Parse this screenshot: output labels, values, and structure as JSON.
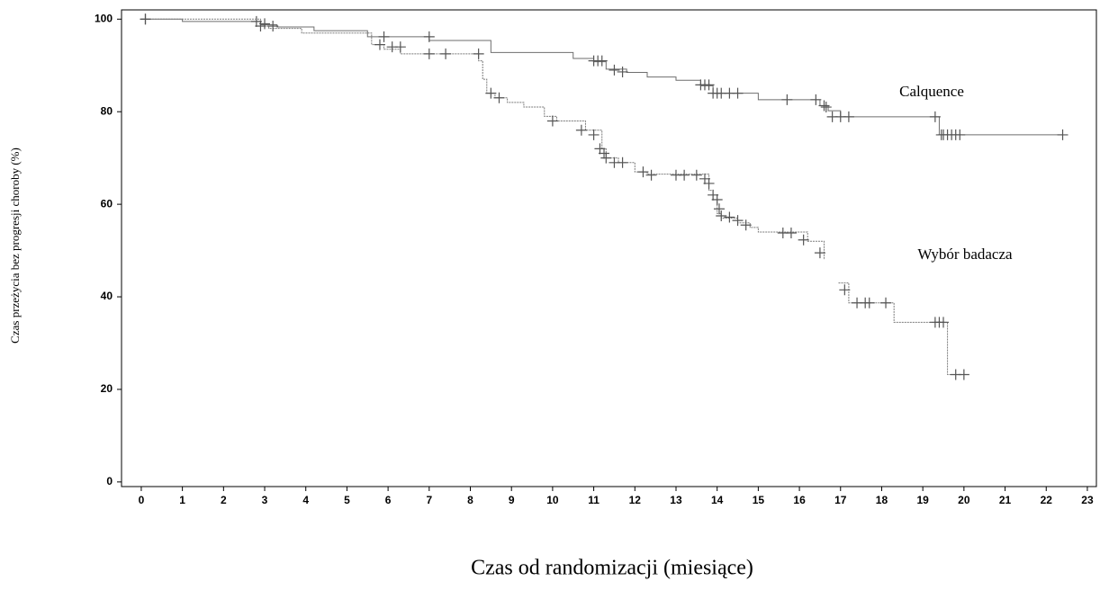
{
  "chart_data": {
    "type": "kaplan-meier",
    "y_label": "Czas przeżycia bez progresji choroby (%)",
    "x_label": "Czas od randomizacji (miesiące)",
    "xlim": [
      -0.48,
      23.22
    ],
    "ylim": [
      -1,
      102
    ],
    "xticks": [
      0,
      1,
      2,
      3,
      4,
      5,
      6,
      7,
      8,
      9,
      10,
      11,
      12,
      13,
      14,
      15,
      16,
      17,
      18,
      19,
      20,
      21,
      22,
      23
    ],
    "yticks": [
      0,
      20,
      40,
      60,
      80,
      100
    ],
    "series": [
      {
        "name": "Calquence",
        "color": "#6e6e6e",
        "dash": false,
        "x": [
          0,
          1.0,
          2.9,
          3.3,
          4.2,
          5.5,
          7.0,
          8.5,
          10.5,
          11.0,
          11.3,
          11.8,
          12.3,
          13.0,
          13.6,
          13.9,
          15.0,
          16.5,
          16.7,
          17.0,
          19.3,
          19.4,
          22.4
        ],
        "y": [
          100,
          99.5,
          98.8,
          98.3,
          97.5,
          96.2,
          95.4,
          92.8,
          91.5,
          90.8,
          89.2,
          88.5,
          87.5,
          86.8,
          85.6,
          84.0,
          82.6,
          81.3,
          80.2,
          78.9,
          78.9,
          75.0,
          75.0
        ],
        "censored_x": [
          0.1,
          2.8,
          3.0,
          5.9,
          7.0,
          11.0,
          11.1,
          11.2,
          11.5,
          11.7,
          13.6,
          13.7,
          13.8,
          13.9,
          14.0,
          14.1,
          14.3,
          14.5,
          15.7,
          16.4,
          16.6,
          16.65,
          16.8,
          17.0,
          17.2,
          19.3,
          19.45,
          19.5,
          19.6,
          19.7,
          19.8,
          19.9,
          22.4
        ],
        "censored_y": [
          100,
          99.5,
          99,
          96.2,
          96.2,
          91,
          91,
          91,
          89,
          88.6,
          85.8,
          85.8,
          85.8,
          84,
          84,
          84,
          84,
          84,
          82.6,
          82.6,
          81.3,
          81,
          78.9,
          78.9,
          78.9,
          78.9,
          75,
          75,
          75,
          75,
          75,
          75,
          75
        ]
      },
      {
        "name": "Wybór badacza",
        "color": "#7a7a7a",
        "dash": true,
        "x": [
          0,
          2.9,
          3.1,
          3.9,
          5.6,
          5.9,
          6.3,
          8.2,
          8.3,
          8.4,
          8.6,
          8.9,
          9.3,
          9.8,
          10.1,
          10.8,
          11.2,
          11.3,
          11.6,
          12.0,
          12.3,
          13.8,
          13.9,
          14.0,
          14.1,
          14.5,
          14.8,
          15.0,
          16.2,
          16.6,
          16.62,
          16.95,
          17.2,
          18.3,
          19.5,
          19.6,
          20.0
        ],
        "y": [
          100,
          98.5,
          98.0,
          97.0,
          94.5,
          93.5,
          92.5,
          91.0,
          87.0,
          84.0,
          83.0,
          82.0,
          81.0,
          79.0,
          78.0,
          76.0,
          72.0,
          70.0,
          69.0,
          67.0,
          66.5,
          63.0,
          61.0,
          58.0,
          57.0,
          56.0,
          55.0,
          54.0,
          52.0,
          48.0,
          null,
          43.0,
          38.7,
          34.5,
          34.5,
          23.2,
          23.2
        ],
        "censored_x": [
          0.1,
          2.9,
          3.2,
          5.8,
          6.1,
          6.3,
          7.0,
          7.4,
          8.2,
          8.5,
          8.7,
          10.0,
          10.7,
          11.0,
          11.15,
          11.25,
          11.3,
          11.5,
          11.7,
          12.2,
          12.4,
          13.0,
          13.2,
          13.5,
          13.7,
          13.8,
          13.9,
          14.0,
          14.05,
          14.1,
          14.3,
          14.5,
          14.7,
          15.6,
          15.8,
          16.1,
          16.5,
          17.1,
          17.4,
          17.6,
          17.7,
          18.1,
          19.3,
          19.4,
          19.5,
          19.8,
          20.0
        ],
        "censored_y": [
          100,
          98.5,
          98.5,
          94.5,
          94,
          94,
          92.5,
          92.5,
          92.5,
          84,
          83,
          78,
          76,
          75,
          72,
          71,
          70,
          69,
          69,
          67,
          66.3,
          66.3,
          66.3,
          66.3,
          65.5,
          64.5,
          62,
          61,
          59,
          57.5,
          57.2,
          56.5,
          55.5,
          53.8,
          53.8,
          52.3,
          49.5,
          41.5,
          38.7,
          38.7,
          38.7,
          38.7,
          34.5,
          34.5,
          34.5,
          23.2,
          23.2
        ]
      }
    ]
  }
}
